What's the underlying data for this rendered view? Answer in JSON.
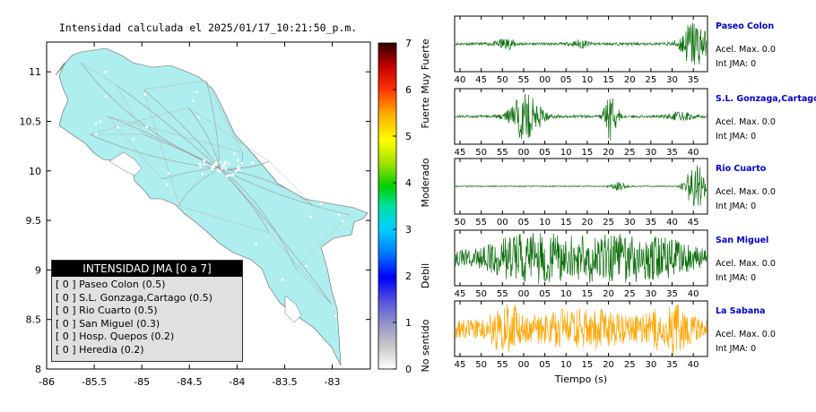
{
  "title": "Intensidad calculada el 2025/01/17_10:21:50_p.m.",
  "colors": {
    "land": "#aeeeee",
    "roads": "#999999",
    "grid": "#000000",
    "trace_green": "#0b6e0b",
    "trace_orange": "#ffa500",
    "station_label": "#0000cc"
  },
  "chart_data": [
    {
      "type": "heatmap",
      "name": "intensity-map",
      "title": "Intensidad calculada el 2025/01/17_10:21:50_p.m.",
      "xlim": [
        -86,
        -82.6
      ],
      "ylim": [
        8,
        11.3
      ],
      "x_ticks": [
        "-86",
        "-85.5",
        "-85",
        "-84.5",
        "-84",
        "-83.5",
        "-83"
      ],
      "x_tick_values": [
        -86,
        -85.5,
        -85,
        -84.5,
        -84,
        -83.5,
        -83
      ],
      "y_ticks": [
        "8",
        "8.5",
        "9",
        "9.5",
        "10",
        "10.5",
        "11"
      ],
      "y_tick_values": [
        8,
        8.5,
        9,
        9.5,
        10,
        10.5,
        11
      ],
      "colorbar": {
        "range": [
          0,
          7
        ],
        "ticks": [
          "0",
          "1",
          "2",
          "3",
          "4",
          "5",
          "6",
          "7"
        ],
        "labels": [
          {
            "text": "No sentido",
            "value": 0.5
          },
          {
            "text": "Debil",
            "value": 2
          },
          {
            "text": "Moderado",
            "value": 4
          },
          {
            "text": "Fuerte",
            "value": 5.5
          },
          {
            "text": "Muy Fuerte",
            "value": 6.5
          }
        ]
      }
    },
    {
      "type": "line",
      "name": "waveforms",
      "xlabel": "Tiempo (s)",
      "traces": [
        {
          "station": "Paseo Colon",
          "acel": "Acel. Max. 0.0",
          "int": "Int JMA: 0",
          "ticks": [
            "40",
            "45",
            "50",
            "55",
            "00",
            "05",
            "10",
            "15",
            "20",
            "25",
            "30",
            "35"
          ],
          "color": "#0b6e0b",
          "bursts": [
            [
              0.2,
              0.04,
              0.2
            ],
            [
              0.5,
              0.03,
              0.15
            ],
            [
              0.95,
              0.05,
              1.0
            ]
          ],
          "noise": 0.05
        },
        {
          "station": "S.L. Gonzaga,Cartago",
          "acel": "Acel. Max. 0.0",
          "int": "Int JMA: 0",
          "ticks": [
            "45",
            "50",
            "55",
            "00",
            "05",
            "10",
            "15",
            "20",
            "25",
            "30",
            "35",
            "40"
          ],
          "color": "#0b6e0b",
          "bursts": [
            [
              0.28,
              0.06,
              0.9
            ],
            [
              0.62,
              0.025,
              1.0
            ],
            [
              0.9,
              0.05,
              0.15
            ]
          ],
          "noise": 0.05
        },
        {
          "station": "Rio Cuarto",
          "acel": "Acel. Max. 0.0",
          "int": "Int JMA: 0",
          "ticks": [
            "50",
            "55",
            "00",
            "05",
            "10",
            "15",
            "20",
            "25",
            "30",
            "35",
            "40",
            "45"
          ],
          "color": "#0b6e0b",
          "bursts": [
            [
              0.65,
              0.03,
              0.15
            ],
            [
              0.96,
              0.04,
              1.0
            ]
          ],
          "noise": 0.02
        },
        {
          "station": "San Miguel",
          "acel": "Acel. Max. 0.0",
          "int": "Int JMA: 0",
          "ticks": [
            "45",
            "50",
            "55",
            "00",
            "05",
            "10",
            "15",
            "20",
            "25",
            "30",
            "35",
            "40"
          ],
          "color": "#0b6e0b",
          "bursts": [
            [
              0.3,
              0.15,
              0.8
            ],
            [
              0.62,
              0.15,
              0.95
            ],
            [
              0.85,
              0.1,
              0.4
            ]
          ],
          "noise": 0.3
        },
        {
          "station": "La Sabana",
          "acel": "Acel. Max. 0.0",
          "int": "Int JMA: 0",
          "ticks": [
            "45",
            "50",
            "55",
            "00",
            "05",
            "10",
            "15",
            "20",
            "25",
            "30",
            "35",
            "40"
          ],
          "color": "#ffa500",
          "bursts": [
            [
              0.2,
              0.05,
              0.9
            ],
            [
              0.5,
              0.2,
              0.5
            ],
            [
              0.85,
              0.08,
              0.7
            ]
          ],
          "noise": 0.35
        }
      ]
    }
  ],
  "legend": {
    "title": "INTENSIDAD JMA [0 a 7]",
    "items": [
      "[ 0 ]  Paseo Colon (0.5)",
      "[ 0 ]  S.L. Gonzaga,Cartago (0.5)",
      "[ 0 ]  Rio Cuarto (0.5)",
      "[ 0 ]  San Miguel (0.3)",
      "[ 0 ]  Hosp. Quepos (0.2)",
      "[ 0 ]  Heredia (0.2)"
    ]
  }
}
